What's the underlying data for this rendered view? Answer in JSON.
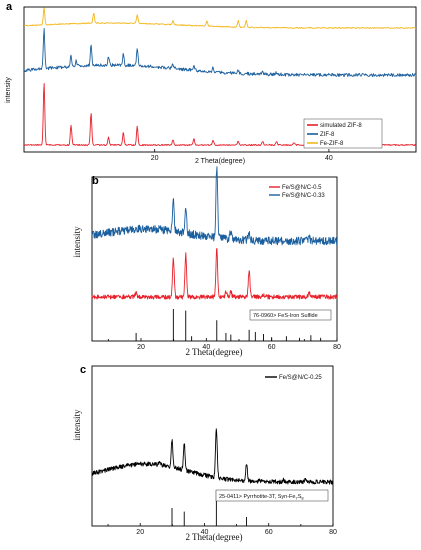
{
  "chart_data": [
    {
      "panel": "a",
      "type": "line",
      "xlabel": "2 Theta(degree)",
      "ylabel": "intensity",
      "xlim": [
        5,
        50
      ],
      "xticks": [
        20,
        40
      ],
      "yticks": "none",
      "legend": {
        "placement": "right",
        "entries": [
          "simulated ZIF-8",
          "ZIF-8",
          "Fe-ZIF-8"
        ]
      },
      "series": [
        {
          "name": "simulated ZIF-8",
          "color": "#e8202a",
          "peaks": [
            [
              7.3,
              100
            ],
            [
              10.4,
              32
            ],
            [
              12.7,
              52
            ],
            [
              14.7,
              12
            ],
            [
              16.4,
              20
            ],
            [
              18.0,
              30
            ],
            [
              22.1,
              8
            ],
            [
              24.5,
              10
            ],
            [
              26.7,
              8
            ],
            [
              29.6,
              6
            ],
            [
              32.4,
              6
            ],
            [
              34.0,
              5
            ],
            [
              36.0,
              4
            ],
            [
              39.6,
              4
            ],
            [
              43.0,
              3
            ]
          ]
        },
        {
          "name": "ZIF-8",
          "color": "#1b5f9e",
          "peaks": [
            [
              7.3,
              100
            ],
            [
              10.4,
              28
            ],
            [
              11.0,
              15
            ],
            [
              12.7,
              52
            ],
            [
              14.7,
              22
            ],
            [
              16.4,
              28
            ],
            [
              18.0,
              45
            ],
            [
              22.1,
              10
            ],
            [
              24.5,
              12
            ],
            [
              26.7,
              10
            ],
            [
              29.6,
              8
            ],
            [
              32.4,
              6
            ],
            [
              34.0,
              5
            ]
          ]
        },
        {
          "name": "Fe-ZIF-8",
          "color": "#f2b71c",
          "peaks": [
            [
              7.3,
              100
            ],
            [
              13.0,
              62
            ],
            [
              18.0,
              50
            ],
            [
              22.1,
              25
            ],
            [
              26.0,
              30
            ],
            [
              29.6,
              38
            ],
            [
              30.5,
              40
            ]
          ]
        }
      ]
    },
    {
      "panel": "b",
      "type": "line",
      "xlabel": "2 Theta(degree)",
      "ylabel": "intensity",
      "xlim": [
        5,
        80
      ],
      "xticks": [
        20,
        40,
        60,
        80
      ],
      "legend": {
        "placement": "top-right",
        "entries": [
          "Fe/S@N/C-0.5",
          "Fe/S@N/C-0.33"
        ]
      },
      "reference": {
        "label": "76-0960> FeS-Iron Sulfide",
        "lines": [
          [
            18.5,
            25
          ],
          [
            29.9,
            100
          ],
          [
            33.7,
            95
          ],
          [
            35.5,
            15
          ],
          [
            43.2,
            65
          ],
          [
            46.0,
            25
          ],
          [
            47.5,
            20
          ],
          [
            53.1,
            35
          ],
          [
            55.0,
            28
          ],
          [
            57.5,
            22
          ],
          [
            60.0,
            12
          ],
          [
            64.5,
            15
          ],
          [
            68.5,
            10
          ],
          [
            72.0,
            18
          ],
          [
            75.0,
            10
          ]
        ]
      },
      "series": [
        {
          "name": "Fe/S@N/C-0.5",
          "color": "#e8202a",
          "peaks": [
            [
              18.5,
              8
            ],
            [
              29.9,
              70
            ],
            [
              33.7,
              78
            ],
            [
              43.2,
              90
            ],
            [
              46.0,
              10
            ],
            [
              47.5,
              10
            ],
            [
              53.1,
              48
            ],
            [
              57.5,
              5
            ],
            [
              64.5,
              5
            ],
            [
              71.5,
              8
            ]
          ]
        },
        {
          "name": "Fe/S@N/C-0.33",
          "color": "#1b5f9e",
          "peaks": [
            [
              29.9,
              55
            ],
            [
              33.7,
              50
            ],
            [
              43.2,
              130
            ],
            [
              47.5,
              15
            ],
            [
              53.1,
              15
            ],
            [
              71.5,
              5
            ]
          ]
        }
      ]
    },
    {
      "panel": "c",
      "type": "line",
      "xlabel": "2 Theta(degree)",
      "ylabel": "intensity",
      "xlim": [
        5,
        80
      ],
      "xticks": [
        20,
        40,
        60,
        80
      ],
      "legend": {
        "placement": "top-right",
        "entries": [
          "Fe/S@N/C-0.25"
        ]
      },
      "reference": {
        "label": "25-0411> Pyrrhotite-3T, Syn-Fe",
        "label_sub": "7",
        "label_tail": "S",
        "label_sub2": "8",
        "lines": [
          [
            29.9,
            50
          ],
          [
            33.7,
            40
          ],
          [
            43.7,
            100
          ],
          [
            53.1,
            25
          ]
        ]
      },
      "series": [
        {
          "name": "Fe/S@N/C-0.25",
          "color": "#000000",
          "peaks": [
            [
              26.0,
              4
            ],
            [
              29.9,
              38
            ],
            [
              33.7,
              38
            ],
            [
              43.7,
              68
            ],
            [
              53.1,
              25
            ],
            [
              57.0,
              3
            ],
            [
              64.5,
              3
            ],
            [
              71.5,
              5
            ]
          ]
        }
      ]
    }
  ]
}
